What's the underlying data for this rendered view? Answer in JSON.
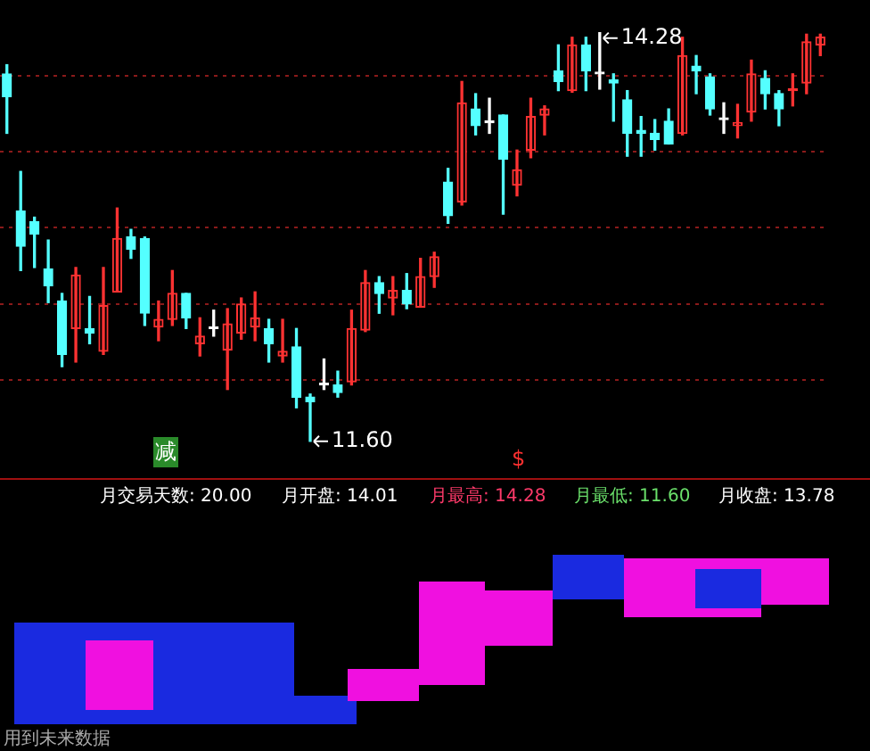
{
  "chart_data": [
    {
      "type": "candlestick",
      "categories": [
        null,
        null,
        null,
        null,
        null,
        null,
        null,
        null,
        null,
        null,
        null,
        null,
        null,
        null,
        null,
        null,
        null,
        null,
        null,
        null,
        null,
        null,
        null,
        null,
        null,
        null,
        null,
        null,
        null,
        null,
        null,
        null,
        null,
        null,
        null,
        null,
        null,
        null,
        null,
        null,
        null,
        null,
        null,
        null,
        null,
        null,
        null,
        null,
        null,
        null,
        null,
        null,
        null,
        null,
        null,
        null,
        null,
        null,
        null,
        null
      ],
      "ohlc": [
        [
          14.01,
          14.07,
          13.62,
          13.86
        ],
        [
          13.11,
          13.37,
          12.72,
          12.88
        ],
        [
          13.04,
          13.07,
          12.74,
          12.96
        ],
        [
          12.73,
          12.92,
          12.51,
          12.62
        ],
        [
          12.52,
          12.57,
          12.09,
          12.17
        ],
        [
          12.34,
          12.74,
          12.12,
          12.69
        ],
        [
          12.34,
          12.55,
          12.24,
          12.31
        ],
        [
          12.19,
          12.74,
          12.17,
          12.49
        ],
        [
          12.58,
          13.13,
          12.58,
          12.93
        ],
        [
          12.94,
          12.99,
          12.8,
          12.86
        ],
        [
          12.93,
          12.94,
          12.36,
          12.44
        ],
        [
          12.35,
          12.52,
          12.26,
          12.4
        ],
        [
          12.4,
          12.72,
          12.36,
          12.57
        ],
        [
          12.57,
          12.57,
          12.34,
          12.41
        ],
        [
          12.24,
          12.41,
          12.16,
          12.29
        ],
        [
          12.34,
          12.46,
          12.29,
          12.34
        ],
        [
          12.2,
          12.47,
          11.94,
          12.37
        ],
        [
          12.31,
          12.54,
          12.27,
          12.5
        ],
        [
          12.35,
          12.58,
          12.26,
          12.41
        ],
        [
          12.34,
          12.4,
          12.12,
          12.24
        ],
        [
          12.16,
          12.4,
          12.12,
          12.19
        ],
        [
          12.22,
          12.34,
          11.82,
          11.89
        ],
        [
          11.89,
          11.91,
          11.6,
          11.86
        ],
        [
          11.97,
          12.14,
          11.94,
          11.97
        ],
        [
          11.97,
          12.06,
          11.89,
          11.92
        ],
        [
          11.99,
          12.46,
          11.97,
          12.34
        ],
        [
          12.33,
          12.72,
          12.32,
          12.64
        ],
        [
          12.64,
          12.68,
          12.44,
          12.57
        ],
        [
          12.54,
          12.68,
          12.43,
          12.59
        ],
        [
          12.59,
          12.7,
          12.47,
          12.5
        ],
        [
          12.48,
          12.8,
          12.48,
          12.68
        ],
        [
          12.68,
          12.84,
          12.61,
          12.81
        ],
        [
          13.3,
          13.39,
          13.03,
          13.08
        ],
        [
          13.17,
          13.96,
          13.15,
          13.82
        ],
        [
          13.78,
          13.88,
          13.61,
          13.67
        ],
        [
          13.69,
          13.85,
          13.62,
          13.69
        ],
        [
          13.74,
          13.74,
          13.09,
          13.45
        ],
        [
          13.28,
          13.51,
          13.21,
          13.38
        ],
        [
          13.51,
          13.85,
          13.46,
          13.73
        ],
        [
          13.74,
          13.8,
          13.61,
          13.78
        ],
        [
          14.03,
          14.2,
          13.9,
          13.96
        ],
        [
          13.9,
          14.25,
          13.89,
          14.2
        ],
        [
          14.2,
          14.25,
          13.9,
          14.03
        ],
        [
          14.01,
          14.28,
          13.91,
          14.01
        ],
        [
          13.97,
          14.01,
          13.7,
          13.95
        ],
        [
          13.84,
          13.9,
          13.47,
          13.62
        ],
        [
          13.64,
          13.73,
          13.47,
          13.62
        ],
        [
          13.62,
          13.71,
          13.51,
          13.58
        ],
        [
          13.7,
          13.78,
          13.55,
          13.55
        ],
        [
          13.62,
          14.25,
          13.61,
          14.13
        ],
        [
          14.06,
          14.13,
          13.88,
          14.03
        ],
        [
          13.99,
          14.01,
          13.74,
          13.78
        ],
        [
          13.71,
          13.82,
          13.62,
          13.71
        ],
        [
          13.67,
          13.81,
          13.59,
          13.69
        ],
        [
          13.76,
          14.1,
          13.7,
          14.01
        ],
        [
          13.98,
          14.03,
          13.78,
          13.88
        ],
        [
          13.88,
          13.9,
          13.67,
          13.78
        ],
        [
          13.9,
          14.01,
          13.8,
          13.9
        ],
        [
          13.95,
          14.27,
          13.88,
          14.22
        ],
        [
          14.2,
          14.27,
          14.13,
          14.25
        ]
      ],
      "colors": [
        "#54ffff",
        "#54ffff",
        "#54ffff",
        "#54ffff",
        "#54ffff",
        "#ff3232",
        "#54ffff",
        "#ff3232",
        "#ff3232",
        "#54ffff",
        "#54ffff",
        "#ff3232",
        "#ff3232",
        "#54ffff",
        "#ff3232",
        "#ffffff",
        "#ff3232",
        "#ff3232",
        "#ff3232",
        "#54ffff",
        "#ff3232",
        "#54ffff",
        "#54ffff",
        "#ffffff",
        "#54ffff",
        "#ff3232",
        "#ff3232",
        "#54ffff",
        "#ff3232",
        "#54ffff",
        "#ff3232",
        "#ff3232",
        "#54ffff",
        "#ff3232",
        "#54ffff",
        "#ffffff",
        "#54ffff",
        "#ff3232",
        "#ff3232",
        "#ff3232",
        "#54ffff",
        "#ff3232",
        "#54ffff",
        "#ffffff",
        "#54ffff",
        "#54ffff",
        "#54ffff",
        "#54ffff",
        "#54ffff",
        "#ff3232",
        "#54ffff",
        "#54ffff",
        "#ffffff",
        "#ff3232",
        "#ff3232",
        "#54ffff",
        "#54ffff",
        "#ff3232",
        "#ff3232",
        "#ff3232"
      ],
      "yticks": [
        {
          "value": 12,
          "label": null
        },
        {
          "value": 12.5,
          "label": null
        },
        {
          "value": 13,
          "label": null
        },
        {
          "value": 13.5,
          "label": null
        },
        {
          "value": 14,
          "label": null
        }
      ],
      "grid": "y",
      "tick_labels": false,
      "legend": false,
      "annotations": [
        "14.28",
        "11.60",
        "减",
        "$"
      ]
    },
    {
      "type": "other",
      "annotations": [
        "月交易天数: 20.00",
        "月开盘: 14.01",
        "月最高: 14.28",
        "月最低: 11.60",
        "月收盘: 13.78",
        "用到未来数据"
      ]
    }
  ]
}
